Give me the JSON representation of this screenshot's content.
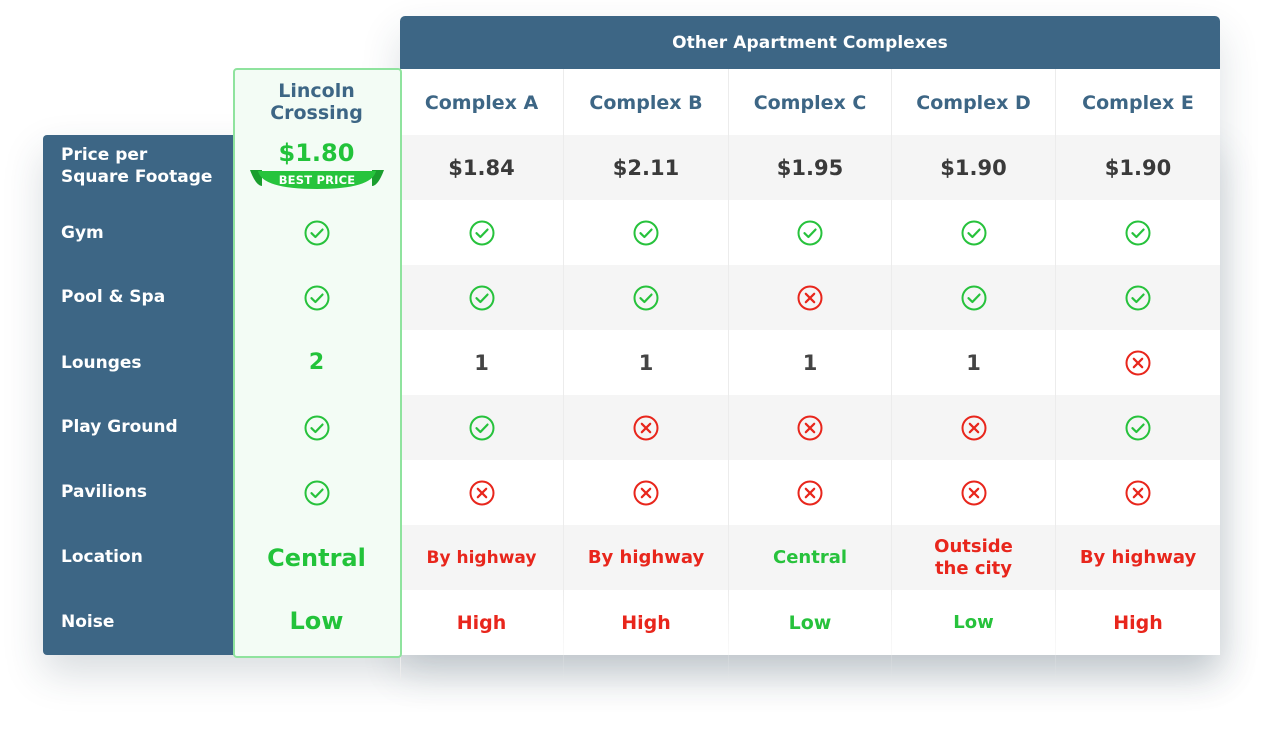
{
  "header": {
    "others_title": "Other Apartment Complexes"
  },
  "lincoln": {
    "name_line1": "Lincoln",
    "name_line2": "Crossing",
    "price": "$1.80",
    "badge": "BEST PRICE",
    "lounges": "2",
    "location": "Central",
    "noise": "Low"
  },
  "row_labels": {
    "price_line1": "Price per",
    "price_line2": "Square Footage",
    "gym": "Gym",
    "pool": "Pool & Spa",
    "lounges": "Lounges",
    "playground": "Play Ground",
    "pavilions": "Pavilions",
    "location": "Location",
    "noise": "Noise"
  },
  "complexes": [
    {
      "name": "Complex A",
      "price": "$1.84",
      "gym": "yes",
      "pool": "yes",
      "lounges": "1",
      "playground": "yes",
      "pavilions": "no",
      "location": "By highway",
      "location_status": "bad",
      "noise": "High",
      "noise_status": "bad"
    },
    {
      "name": "Complex B",
      "price": "$2.11",
      "gym": "yes",
      "pool": "yes",
      "lounges": "1",
      "playground": "no",
      "pavilions": "no",
      "location": "By highway",
      "location_status": "bad",
      "noise": "High",
      "noise_status": "bad"
    },
    {
      "name": "Complex C",
      "price": "$1.95",
      "gym": "yes",
      "pool": "no",
      "lounges": "1",
      "playground": "no",
      "pavilions": "no",
      "location": "Central",
      "location_status": "good",
      "noise": "Low",
      "noise_status": "good"
    },
    {
      "name": "Complex D",
      "price": "$1.90",
      "gym": "yes",
      "pool": "yes",
      "lounges": "1",
      "playground": "no",
      "pavilions": "no",
      "location_line1": "Outside",
      "location_line2": "the city",
      "location_status": "bad",
      "noise": "Low",
      "noise_status": "good"
    },
    {
      "name": "Complex E",
      "price": "$1.90",
      "gym": "yes",
      "pool": "yes",
      "lounges": "no",
      "playground": "yes",
      "pavilions": "no",
      "location": "By highway",
      "location_status": "bad",
      "noise": "High",
      "noise_status": "bad"
    }
  ],
  "icons": {
    "yes": "check-circle-icon",
    "no": "x-circle-icon"
  },
  "colors": {
    "navy": "#3d6685",
    "good": "#27c23c",
    "bad": "#e8261c"
  }
}
